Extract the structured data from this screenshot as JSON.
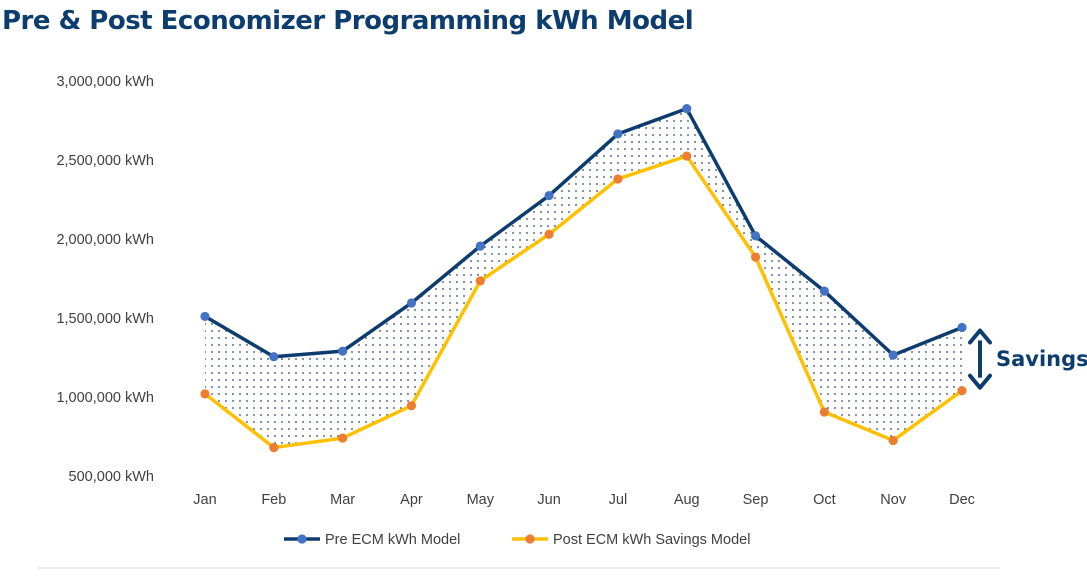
{
  "chart_data": {
    "type": "line",
    "title": "Pre & Post Economizer Programming kWh Model",
    "categories": [
      "Jan",
      "Feb",
      "Mar",
      "Apr",
      "May",
      "Jun",
      "Jul",
      "Aug",
      "Sep",
      "Oct",
      "Nov",
      "Dec"
    ],
    "y_ticks": [
      "3,000,000 kWh",
      "2,500,000 kWh",
      "2,000,000 kWh",
      "1,500,000 kWh",
      "1,000,000 kWh",
      "500,000 kWh"
    ],
    "ylim": [
      500000,
      3000000
    ],
    "grid": false,
    "legend_position": "bottom",
    "series": [
      {
        "name": "Pre ECM kWh Model",
        "color": "#0d3d6e",
        "marker_color": "#4472c4",
        "values": [
          1510000,
          1255000,
          1290000,
          1595000,
          1955000,
          2275000,
          2665000,
          2825000,
          2020000,
          1670000,
          1265000,
          1440000
        ]
      },
      {
        "name": "Post ECM kWh Savings Model",
        "color": "#ffc000",
        "marker_color": "#ed7d31",
        "values": [
          1020000,
          680000,
          740000,
          945000,
          1735000,
          2030000,
          2380000,
          2525000,
          1885000,
          905000,
          725000,
          1040000
        ]
      }
    ],
    "annotation": {
      "label": "Savings",
      "color": "#0d3d6e"
    },
    "fill": "dotted area between series"
  }
}
